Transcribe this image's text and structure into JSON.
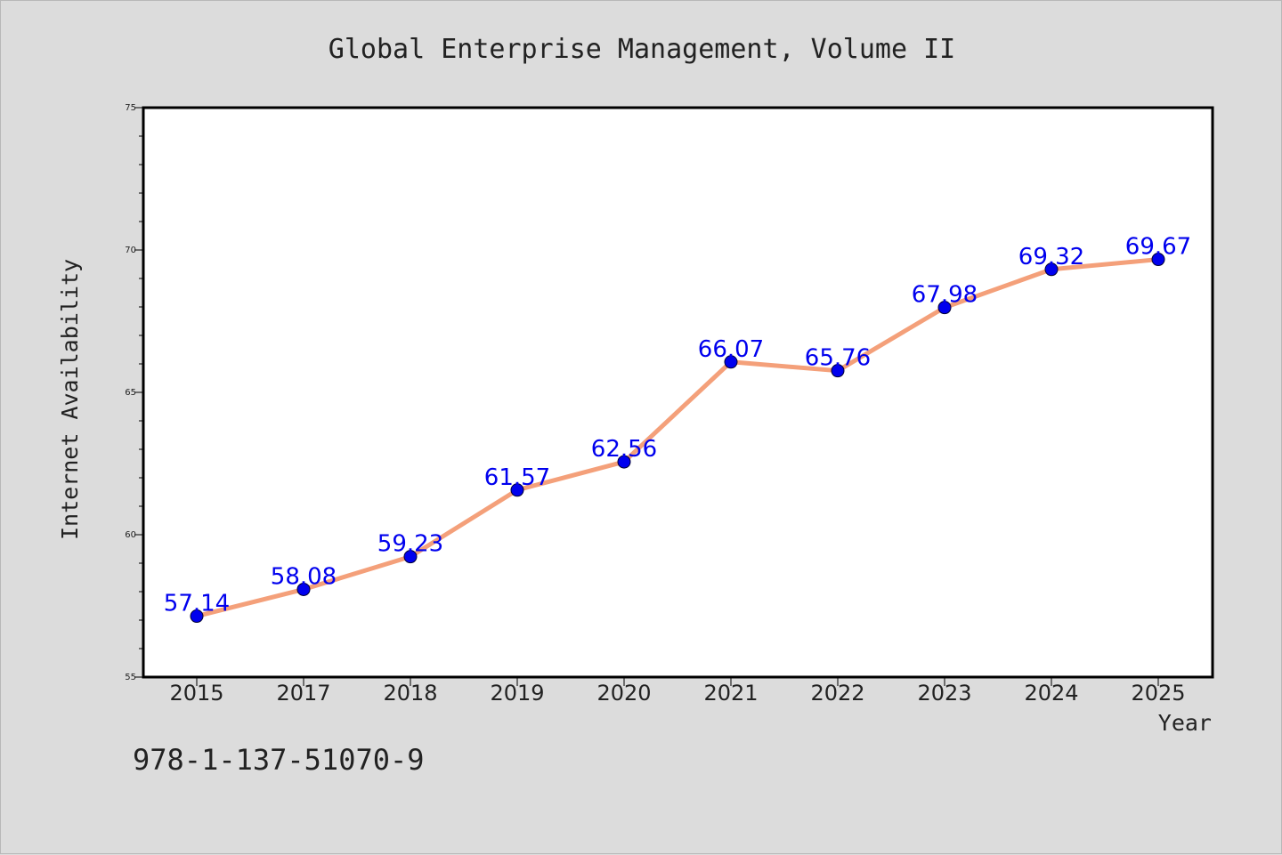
{
  "chart_data": {
    "type": "line",
    "title": "Global Enterprise Management, Volume II",
    "xlabel": "Year",
    "ylabel": "Internet Availability",
    "categories": [
      "2015",
      "2017",
      "2018",
      "2019",
      "2020",
      "2021",
      "2022",
      "2023",
      "2024",
      "2025"
    ],
    "series": [
      {
        "values": [
          57.14,
          58.08,
          59.23,
          61.57,
          62.56,
          66.07,
          65.76,
          67.98,
          69.32,
          69.67
        ],
        "data_labels": [
          "57.14",
          "58.08",
          "59.23",
          "61.57",
          "62.56",
          "66.07",
          "65.76",
          "67.98",
          "69.32",
          "69.67"
        ],
        "line_color": "#f4a07a",
        "marker_color": "#0000ee",
        "label_color": "#0000ee"
      }
    ],
    "ylim": [
      55,
      75
    ],
    "yticks": [
      "55",
      "60",
      "65",
      "70",
      "75"
    ],
    "grid": false,
    "legend": "none"
  },
  "footer": {
    "isbn": "978-1-137-51070-9"
  },
  "colors": {
    "background": "#dcdcdc",
    "plot_background": "#ffffff",
    "axes": "#000000"
  }
}
